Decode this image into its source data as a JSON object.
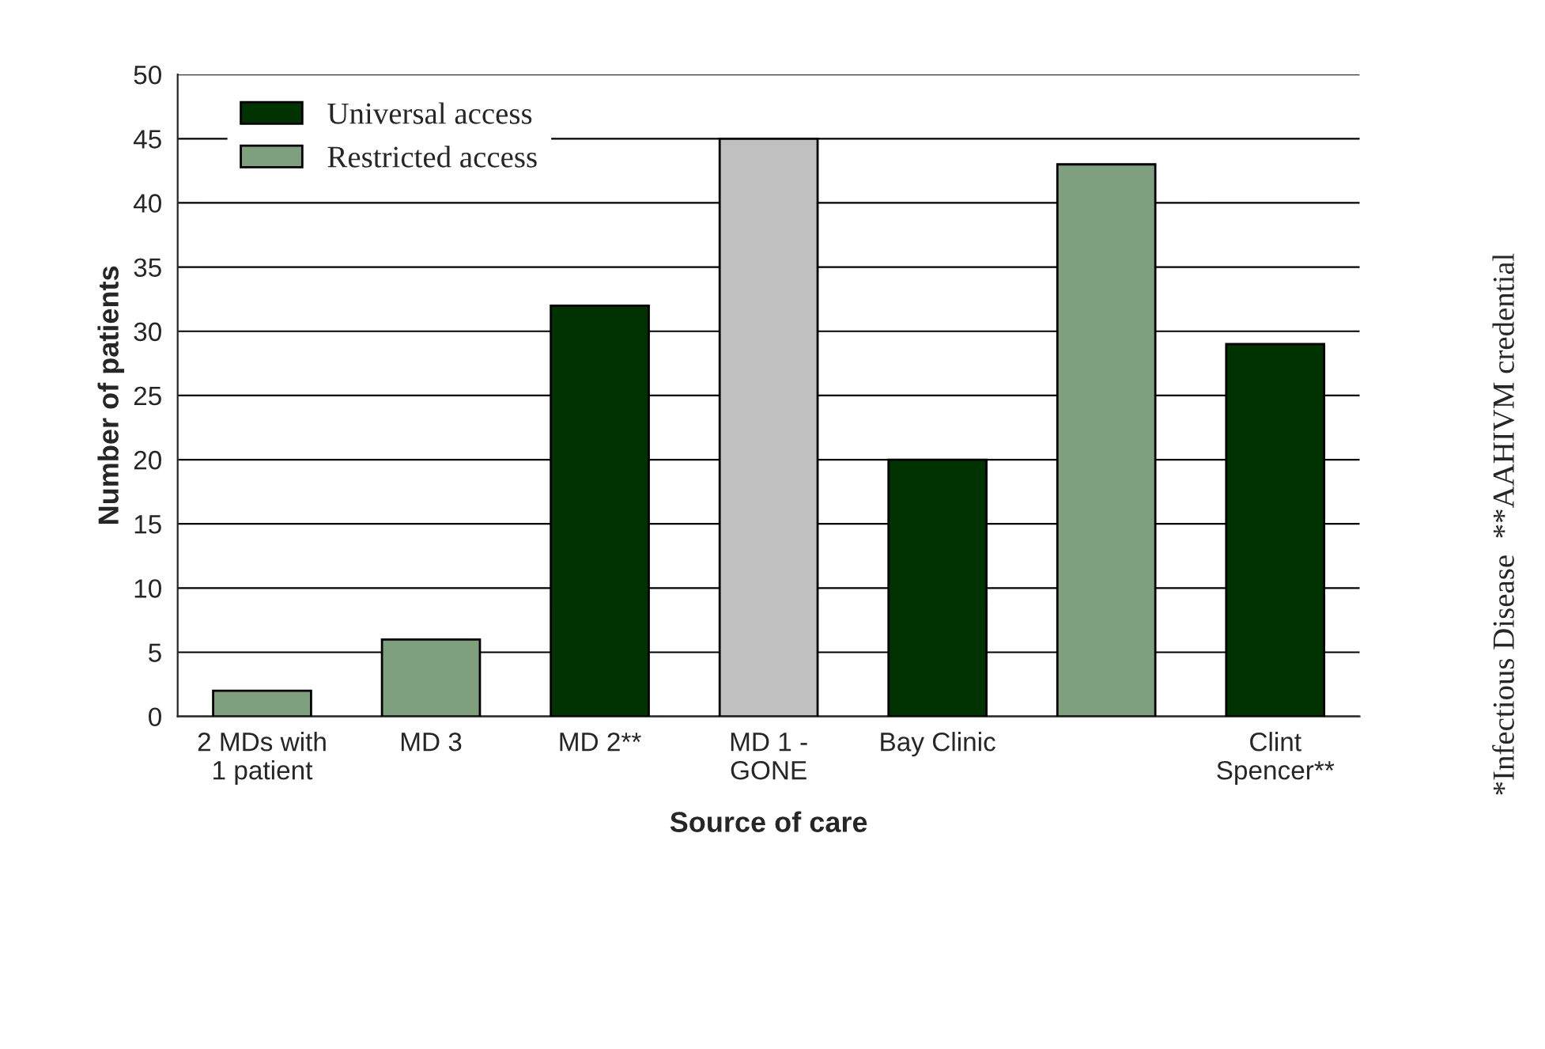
{
  "chart_data": {
    "type": "bar",
    "xlabel": "Source of care",
    "ylabel": "Number of patients",
    "categories": [
      "2 MDs with\n1 patient",
      "MD 3",
      "MD 2**",
      "MD 1 -\nGONE",
      "Bay Clinic",
      null,
      "Clint\nSpencer**"
    ],
    "series": [
      {
        "name": "Universal access",
        "color": "#003300",
        "values": [
          null,
          null,
          32,
          null,
          20,
          null,
          29
        ]
      },
      {
        "name": "Restricted access",
        "color": "#7fa07f",
        "values": [
          2,
          6,
          null,
          null,
          null,
          43,
          null
        ]
      },
      {
        "color": "#c0c0c0",
        "values": [
          null,
          null,
          null,
          45,
          null,
          null,
          null
        ]
      }
    ],
    "ylim": [
      0,
      50
    ],
    "yticks": [
      0,
      5,
      10,
      15,
      20,
      25,
      30,
      35,
      40,
      45,
      50
    ],
    "grid": "y",
    "legend": "top left",
    "annotations": [
      "*Infectious Disease  **AAHIVM credential"
    ]
  }
}
